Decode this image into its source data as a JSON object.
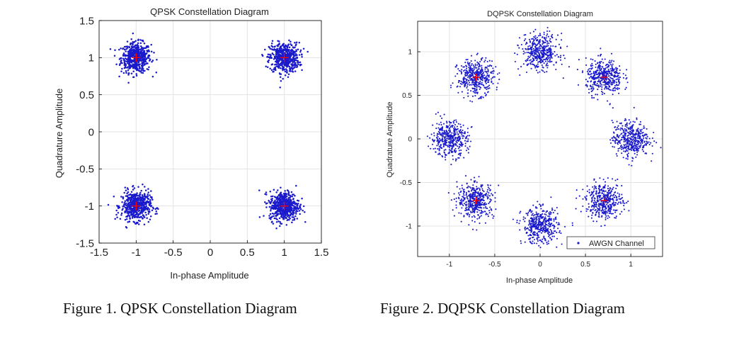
{
  "figure_captions": [
    "Figure 1. QPSK Constellation Diagram",
    "Figure 2. DQPSK Constellation Diagram"
  ],
  "colors": {
    "points": "#1a1acc",
    "reference_marker": "#ff0000",
    "axes": "#000000",
    "grid": "#e3e3e3"
  },
  "chart_data": [
    {
      "type": "scatter",
      "title": "QPSK Constellation Diagram",
      "xlabel": "In-phase Amplitude",
      "ylabel": "Quadrature Amplitude",
      "xlim": [
        -1.5,
        1.5
      ],
      "ylim": [
        -1.5,
        1.5
      ],
      "xticks": [
        -1.5,
        -1,
        -0.5,
        0,
        0.5,
        1,
        1.5
      ],
      "yticks": [
        -1.5,
        -1,
        -0.5,
        0,
        0.5,
        1,
        1.5
      ],
      "xtick_labels": [
        "-1.5",
        "-1",
        "-0.5",
        "0",
        "0.5",
        "1",
        "1.5"
      ],
      "ytick_labels": [
        "-1.5",
        "-1",
        "-0.5",
        "0",
        "0.5",
        "1",
        "1.5"
      ],
      "grid": true,
      "reference_points": [
        [
          -1,
          1
        ],
        [
          1,
          1
        ],
        [
          -1,
          -1
        ],
        [
          1,
          -1
        ]
      ],
      "clusters": [
        {
          "center": [
            -1,
            1
          ],
          "spread": 0.1
        },
        {
          "center": [
            1,
            1
          ],
          "spread": 0.1
        },
        {
          "center": [
            -1,
            -1
          ],
          "spread": 0.1
        },
        {
          "center": [
            1,
            -1
          ],
          "spread": 0.1
        }
      ]
    },
    {
      "type": "scatter",
      "title": "DQPSK Constellation Diagram",
      "xlabel": "In-phase Amplitude",
      "ylabel": "Quadrature Amplitude",
      "xlim": [
        -1.35,
        1.35
      ],
      "ylim": [
        -1.35,
        1.35
      ],
      "xticks": [
        -1,
        -0.5,
        0,
        0.5,
        1
      ],
      "yticks": [
        -1,
        -0.5,
        0,
        0.5,
        1
      ],
      "xtick_labels": [
        "-1",
        "-0.5",
        "0",
        "0.5",
        "1"
      ],
      "ytick_labels": [
        "-1",
        "-0.5",
        "0",
        "0.5",
        "1"
      ],
      "grid": true,
      "legend": {
        "entries": [
          "AWGN Channel"
        ],
        "placement": "bottom-right"
      },
      "reference_points": [
        [
          0.707,
          0.707
        ],
        [
          -0.707,
          0.707
        ],
        [
          -0.707,
          -0.707
        ],
        [
          0.707,
          -0.707
        ]
      ],
      "clusters": [
        {
          "center": [
            1,
            0
          ],
          "spread": 0.1
        },
        {
          "center": [
            0.707,
            0.707
          ],
          "spread": 0.1
        },
        {
          "center": [
            0,
            1
          ],
          "spread": 0.1
        },
        {
          "center": [
            -0.707,
            0.707
          ],
          "spread": 0.1
        },
        {
          "center": [
            -1,
            0
          ],
          "spread": 0.1
        },
        {
          "center": [
            -0.707,
            -0.707
          ],
          "spread": 0.1
        },
        {
          "center": [
            0,
            -1
          ],
          "spread": 0.1
        },
        {
          "center": [
            0.707,
            -0.707
          ],
          "spread": 0.1
        }
      ]
    }
  ]
}
